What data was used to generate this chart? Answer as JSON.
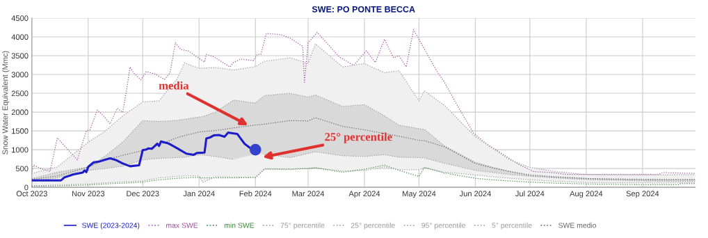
{
  "chart_data": {
    "type": "line",
    "title": "SWE: PO PONTE BECCA",
    "ylabel": "Snow Water Equivalent (Mmc)",
    "x": [
      "2023-10-01",
      "2023-10-15",
      "2023-11-01",
      "2023-11-10",
      "2023-11-20",
      "2023-12-01",
      "2023-12-10",
      "2023-12-20",
      "2023-12-24",
      "2024-01-01",
      "2024-01-03",
      "2024-01-10",
      "2024-01-20",
      "2024-02-01",
      "2024-02-06",
      "2024-02-20",
      "2024-03-01",
      "2024-03-05",
      "2024-03-20",
      "2024-04-01",
      "2024-04-12",
      "2024-04-20",
      "2024-05-01",
      "2024-05-04",
      "2024-05-15",
      "2024-06-01",
      "2024-06-10",
      "2024-06-20",
      "2024-07-01",
      "2024-07-15",
      "2024-08-01",
      "2024-08-15",
      "2024-09-01",
      "2024-09-15",
      "2024-09-21",
      "2024-09-22",
      "2024-09-30"
    ],
    "xlim": [
      "2023-10-01",
      "2024-09-30"
    ],
    "xticks": [
      {
        "value": "2023-10-01",
        "label": "Oct 2023"
      },
      {
        "value": "2023-11-01",
        "label": "Nov 2023"
      },
      {
        "value": "2023-12-01",
        "label": "Dec 2023"
      },
      {
        "value": "2024-01-01",
        "label": "Jan 2024"
      },
      {
        "value": "2024-02-01",
        "label": "Feb 2024"
      },
      {
        "value": "2024-03-01",
        "label": "Mar 2024"
      },
      {
        "value": "2024-04-01",
        "label": "Apr 2024"
      },
      {
        "value": "2024-05-01",
        "label": "May 2024"
      },
      {
        "value": "2024-06-01",
        "label": "Jun 2024"
      },
      {
        "value": "2024-07-01",
        "label": "Jul 2024"
      },
      {
        "value": "2024-08-01",
        "label": "Aug 2024"
      },
      {
        "value": "2024-09-01",
        "label": "Sep 2024"
      }
    ],
    "ylim": [
      0,
      4500
    ],
    "yticks": [
      0,
      500,
      1000,
      1500,
      2000,
      2500,
      3000,
      3500,
      4000,
      4500
    ],
    "grid": true,
    "legend": "bottom",
    "series": [
      {
        "name": "SWE (2023-2024)",
        "color": "#1c1cc8",
        "line_style": "solid",
        "x": [
          "2023-10-01",
          "2023-10-17",
          "2023-10-19",
          "2023-10-24",
          "2023-10-29",
          "2023-10-30",
          "2023-10-31",
          "2023-11-01",
          "2023-11-04",
          "2023-11-07",
          "2023-11-10",
          "2023-11-13",
          "2023-11-16",
          "2023-11-20",
          "2023-11-24",
          "2023-11-29",
          "2023-12-01",
          "2023-12-03",
          "2023-12-04",
          "2023-12-06",
          "2023-12-09",
          "2023-12-10",
          "2023-12-11",
          "2023-12-15",
          "2023-12-19",
          "2023-12-25",
          "2023-12-29",
          "2023-12-31",
          "2024-01-04",
          "2024-01-05",
          "2024-01-07",
          "2024-01-09",
          "2024-01-12",
          "2024-01-15",
          "2024-01-17",
          "2024-01-22",
          "2024-01-26",
          "2024-01-29",
          "2024-02-01"
        ],
        "values": [
          185,
          185,
          265,
          345,
          390,
          450,
          405,
          545,
          665,
          685,
          730,
          770,
          730,
          635,
          560,
          585,
          990,
          1005,
          1035,
          1025,
          1160,
          1100,
          1220,
          1170,
          1065,
          895,
          865,
          915,
          925,
          1300,
          1325,
          1380,
          1390,
          1345,
          1455,
          1420,
          1160,
          1050,
          990
        ]
      },
      {
        "name": "max SWE",
        "color": "#a050a0",
        "line_style": "dotted",
        "x": [
          "2023-10-01",
          "2023-10-02",
          "2023-10-06",
          "2023-10-11",
          "2023-10-15",
          "2023-10-19",
          "2023-10-26",
          "2023-10-31",
          "2023-11-02",
          "2023-11-06",
          "2023-11-10",
          "2023-11-13",
          "2023-11-17",
          "2023-11-20",
          "2023-11-22",
          "2023-11-24",
          "2023-11-26",
          "2023-11-30",
          "2023-12-03",
          "2023-12-08",
          "2023-12-13",
          "2023-12-16",
          "2023-12-19",
          "2023-12-22",
          "2023-12-26",
          "2024-01-04",
          "2024-01-05",
          "2024-01-09",
          "2024-01-18",
          "2024-01-20",
          "2024-01-24",
          "2024-01-31",
          "2024-02-02",
          "2024-02-04",
          "2024-02-07",
          "2024-02-15",
          "2024-02-20",
          "2024-02-27",
          "2024-02-28",
          "2024-03-01",
          "2024-03-06",
          "2024-03-10",
          "2024-03-18",
          "2024-03-26",
          "2024-04-02",
          "2024-04-07",
          "2024-04-12",
          "2024-04-17",
          "2024-04-20",
          "2024-04-24",
          "2024-04-28",
          "2024-05-01",
          "2024-05-11",
          "2024-05-15",
          "2024-05-21",
          "2024-05-31",
          "2024-06-07",
          "2024-06-15",
          "2024-06-25",
          "2024-07-03",
          "2024-07-14",
          "2024-07-21",
          "2024-09-10",
          "2024-09-12",
          "2024-09-30"
        ],
        "values": [
          420,
          590,
          500,
          420,
          1315,
          1100,
          730,
          1500,
          1530,
          2055,
          1870,
          1685,
          2100,
          1995,
          2550,
          3200,
          3040,
          2860,
          3075,
          3010,
          2870,
          3040,
          3845,
          3660,
          3630,
          3330,
          3535,
          3475,
          3200,
          3320,
          3410,
          3370,
          3535,
          3535,
          4090,
          4060,
          3970,
          3750,
          2795,
          3845,
          4120,
          3905,
          3475,
          3240,
          3630,
          3320,
          3935,
          3445,
          3500,
          3200,
          4195,
          3935,
          3075,
          2795,
          2270,
          1440,
          1160,
          915,
          605,
          420,
          390,
          345,
          345,
          390,
          370
        ]
      },
      {
        "name": "min SWE",
        "color": "#3a8a3a",
        "line_style": "dotted",
        "values": [
          30,
          40,
          60,
          90,
          110,
          140,
          200,
          240,
          250,
          260,
          250,
          250,
          250,
          260,
          480,
          490,
          500,
          520,
          400,
          480,
          590,
          450,
          290,
          530,
          380,
          240,
          200,
          170,
          140,
          110,
          90,
          80,
          70,
          70,
          70,
          100,
          100
        ]
      },
      {
        "name": "75° percentile",
        "color": "#9a9a9a",
        "line_style": "dotted",
        "values": [
          230,
          400,
          540,
          820,
          1200,
          1775,
          1750,
          1780,
          1810,
          1870,
          1880,
          2000,
          2320,
          2240,
          2440,
          2500,
          2400,
          2455,
          2150,
          2200,
          1900,
          1650,
          1560,
          1540,
          1100,
          665,
          540,
          420,
          310,
          270,
          235,
          220,
          210,
          205,
          205,
          205,
          205
        ]
      },
      {
        "name": "25° percentile",
        "color": "#9a9a9a",
        "line_style": "dotted",
        "values": [
          170,
          250,
          450,
          500,
          560,
          730,
          770,
          790,
          800,
          865,
          860,
          820,
          740,
          null,
          880,
          790,
          900,
          945,
          840,
          820,
          870,
          800,
          790,
          780,
          640,
          450,
          400,
          340,
          295,
          250,
          205,
          190,
          170,
          160,
          160,
          160,
          160
        ]
      },
      {
        "name": "95° percentile",
        "color": "#9a9a9a",
        "line_style": "dotted",
        "values": [
          370,
          540,
          1200,
          1480,
          1900,
          2270,
          2300,
          2890,
          3310,
          3165,
          3170,
          3185,
          3120,
          3210,
          3350,
          3445,
          3300,
          3815,
          3200,
          3290,
          3050,
          3100,
          2300,
          2560,
          2180,
          1345,
          1050,
          730,
          530,
          420,
          340,
          330,
          330,
          330,
          340,
          340,
          340
        ],
        "lower": [
          40,
          60,
          90,
          120,
          140,
          170,
          250,
          290,
          300,
          300,
          130,
          280,
          270,
          260,
          500,
          470,
          500,
          520,
          430,
          450,
          540,
          470,
          470,
          520,
          400,
          330,
          280,
          240,
          200,
          160,
          130,
          120,
          120,
          115,
          115,
          115,
          115
        ],
        "upper": [
          370,
          540,
          1200,
          1480,
          1900,
          2270,
          2300,
          2890,
          3310,
          3165,
          3170,
          3185,
          3120,
          3210,
          3350,
          3445,
          3300,
          3815,
          3200,
          3290,
          3050,
          3100,
          2300,
          2560,
          2180,
          1345,
          1050,
          730,
          530,
          420,
          340,
          330,
          330,
          330,
          340,
          340,
          340
        ]
      },
      {
        "name": "5° percentile",
        "color": "#9a9a9a",
        "line_style": "dotted",
        "values": [
          40,
          60,
          90,
          120,
          140,
          170,
          250,
          290,
          300,
          300,
          130,
          280,
          270,
          260,
          500,
          470,
          500,
          520,
          430,
          450,
          540,
          470,
          470,
          520,
          400,
          330,
          280,
          240,
          200,
          160,
          130,
          120,
          120,
          115,
          115,
          115,
          115
        ]
      },
      {
        "name": "SWE medio",
        "color": "#666666",
        "line_style": "dotted",
        "values": [
          210,
          300,
          540,
          730,
          850,
          975,
          1130,
          1320,
          1375,
          1470,
          1480,
          1510,
          1580,
          1655,
          1680,
          1775,
          1765,
          1850,
          1620,
          1530,
          1430,
          1360,
          1250,
          1240,
          1080,
          635,
          520,
          420,
          330,
          280,
          235,
          220,
          210,
          205,
          205,
          205,
          205
        ],
        "lower": [
          170,
          250,
          450,
          500,
          560,
          730,
          770,
          790,
          800,
          865,
          860,
          820,
          740,
          880,
          880,
          790,
          900,
          945,
          840,
          820,
          870,
          800,
          790,
          780,
          640,
          450,
          400,
          340,
          295,
          250,
          205,
          190,
          170,
          160,
          160,
          160,
          160
        ],
        "upper": [
          230,
          400,
          540,
          820,
          1200,
          1775,
          1750,
          1780,
          1810,
          1870,
          1880,
          2000,
          2320,
          2240,
          2440,
          2500,
          2400,
          2455,
          2150,
          2200,
          1900,
          1650,
          1560,
          1540,
          1100,
          665,
          540,
          420,
          310,
          270,
          235,
          220,
          210,
          205,
          205,
          205,
          205
        ]
      },
      {
        "type": "scatter",
        "color": "#3344cc",
        "marker": "circle",
        "x": [
          "2024-02-01"
        ],
        "values": [
          1000
        ]
      }
    ],
    "annotations": [
      {
        "text": "media",
        "x": "2024-01-28",
        "y": 1650
      },
      {
        "text": "25° percentile",
        "x": "2024-02-05",
        "y": 800
      }
    ]
  }
}
